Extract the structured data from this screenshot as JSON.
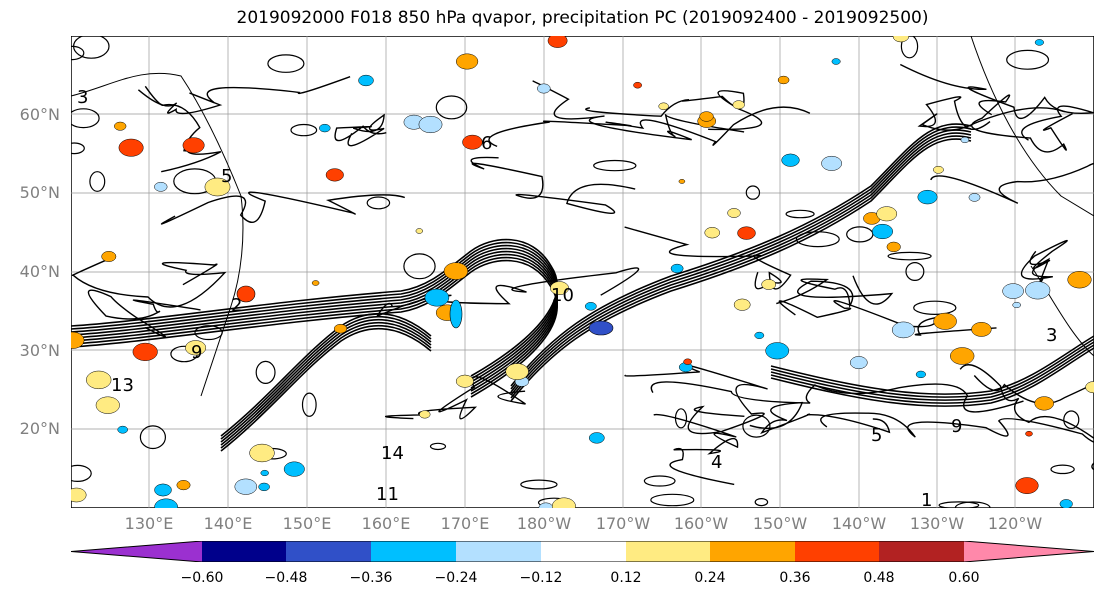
{
  "title": "2019092000 F018 850 hPa qvapor, precipitation PC (2019092400 - 2019092500)",
  "map": {
    "lat_labels": [
      "60°N",
      "50°N",
      "40°N",
      "30°N",
      "20°N"
    ],
    "lon_labels": [
      "130°E",
      "140°E",
      "150°E",
      "160°E",
      "170°E",
      "180°W",
      "170°W",
      "160°W",
      "150°W",
      "140°W",
      "130°W",
      "120°W"
    ],
    "contour_labels": [
      "3",
      "5",
      "9",
      "11",
      "13",
      "14",
      "10",
      "6",
      "2",
      "4",
      "1"
    ]
  },
  "colorbar": {
    "ticks": [
      "−0.60",
      "−0.48",
      "−0.36",
      "−0.24",
      "−0.12",
      "0.12",
      "0.24",
      "0.36",
      "0.48",
      "0.60"
    ],
    "colors": [
      "#9b30d0",
      "#00008b",
      "#3050c8",
      "#00bfff",
      "#b3e0ff",
      "#ffffff",
      "#ffeb82",
      "#ffa500",
      "#ff4000",
      "#b22222",
      "#ff88aa"
    ]
  }
}
